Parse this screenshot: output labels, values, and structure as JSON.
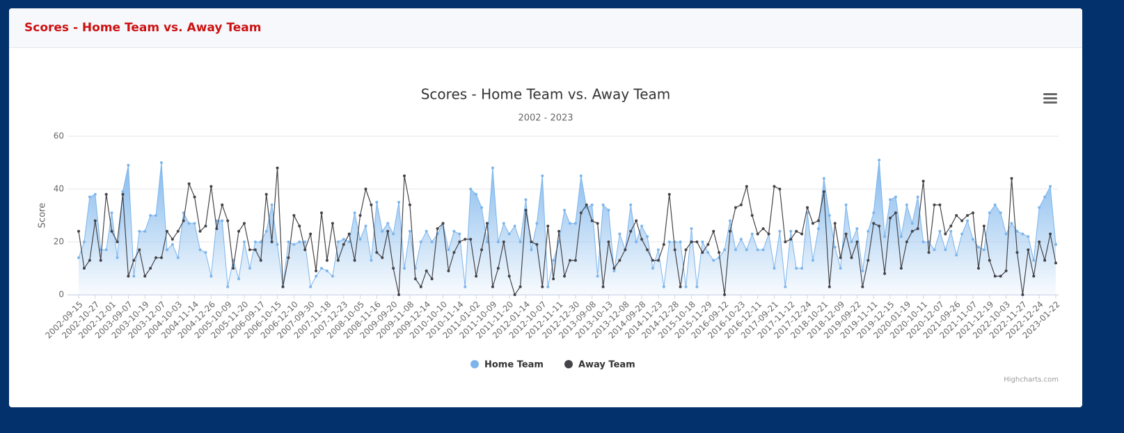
{
  "header": {
    "title": "Scores - Home Team vs. Away Team"
  },
  "chart_data": {
    "type": "line",
    "title": "Scores - Home Team vs. Away Team",
    "subtitle": "2002 - 2023",
    "y_label": "Score",
    "credits": "Highcharts.com",
    "ylim": [
      0,
      60
    ],
    "yticks": [
      0,
      20,
      40,
      60
    ],
    "grid": true,
    "legend": "bottom",
    "categories": [
      "2002-09-15",
      null,
      null,
      "2002-10-27",
      null,
      null,
      "2002-12-01",
      null,
      null,
      "2003-09-07",
      null,
      null,
      "2003-10-19",
      null,
      null,
      "2003-12-07",
      null,
      null,
      "2004-10-03",
      null,
      null,
      "2004-11-14",
      null,
      null,
      "2004-12-26",
      null,
      null,
      "2005-10-09",
      null,
      null,
      "2005-11-20",
      null,
      null,
      "2006-09-17",
      null,
      null,
      "2006-10-15",
      null,
      null,
      "2006-12-10",
      null,
      null,
      "2007-09-30",
      null,
      null,
      "2007-11-18",
      null,
      null,
      "2007-12-23",
      null,
      null,
      "2008-10-05",
      null,
      null,
      "2008-11-16",
      null,
      null,
      "2009-09-20",
      null,
      null,
      "2009-11-08",
      null,
      null,
      "2009-12-14",
      null,
      null,
      "2010-10-10",
      null,
      null,
      "2010-11-14",
      null,
      null,
      "2011-01-02",
      null,
      null,
      "2011-10-09",
      null,
      null,
      "2011-11-20",
      null,
      null,
      "2012-01-14",
      null,
      null,
      "2012-10-07",
      null,
      null,
      "2012-11-11",
      null,
      null,
      "2012-12-30",
      null,
      null,
      "2013-09-08",
      null,
      null,
      "2013-10-13",
      null,
      null,
      "2013-12-08",
      null,
      null,
      "2014-09-28",
      null,
      null,
      "2014-11-23",
      null,
      null,
      "2014-12-28",
      null,
      null,
      "2015-10-18",
      null,
      null,
      "2015-11-29",
      null,
      null,
      "2016-09-12",
      null,
      null,
      "2016-10-23",
      null,
      null,
      "2016-12-11",
      null,
      null,
      "2017-09-21",
      null,
      null,
      "2017-11-12",
      null,
      null,
      "2017-12-24",
      null,
      null,
      "2018-10-21",
      null,
      null,
      "2018-12-09",
      null,
      null,
      "2019-09-22",
      null,
      null,
      "2019-11-11",
      null,
      null,
      "2019-12-15",
      null,
      null,
      "2020-01-19",
      null,
      null,
      "2020-10-11",
      null,
      null,
      "2020-12-07",
      null,
      null,
      "2021-09-26",
      null,
      null,
      "2021-11-07",
      null,
      null,
      "2021-12-19",
      null,
      null,
      "2022-10-03",
      null,
      null,
      "2022-11-27",
      null,
      null,
      "2022-12-24",
      null,
      null,
      "2023-01-22"
    ],
    "series": [
      {
        "name": "Home Team",
        "color": "#7cb5ec",
        "area": true,
        "values": [
          14,
          20,
          37,
          38,
          17,
          17,
          31,
          14,
          39,
          49,
          7,
          24,
          24,
          30,
          30,
          50,
          17,
          19,
          14,
          31,
          27,
          27,
          17,
          16,
          7,
          28,
          28,
          3,
          13,
          6,
          20,
          10,
          20,
          20,
          24,
          34,
          19,
          3,
          20,
          19,
          20,
          20,
          3,
          7,
          10,
          9,
          7,
          20,
          21,
          20,
          31,
          21,
          26,
          13,
          35,
          24,
          27,
          23,
          35,
          10,
          24,
          10,
          20,
          24,
          20,
          23,
          27,
          17,
          24,
          23,
          3,
          40,
          38,
          33,
          20,
          48,
          20,
          27,
          23,
          26,
          20,
          36,
          17,
          27,
          45,
          3,
          13,
          20,
          32,
          27,
          27,
          45,
          33,
          34,
          7,
          34,
          32,
          9,
          23,
          17,
          34,
          20,
          26,
          22,
          10,
          17,
          3,
          20,
          20,
          20,
          3,
          25,
          3,
          20,
          16,
          13,
          14,
          17,
          28,
          17,
          21,
          17,
          23,
          17,
          17,
          23,
          10,
          24,
          3,
          24,
          10,
          10,
          31,
          13,
          25,
          44,
          30,
          18,
          10,
          34,
          20,
          25,
          9,
          24,
          31,
          51,
          22,
          36,
          37,
          22,
          34,
          27,
          37,
          20,
          20,
          17,
          24,
          17,
          24,
          15,
          23,
          28,
          21,
          18,
          17,
          31,
          34,
          31,
          23,
          27,
          24,
          23,
          22,
          13,
          33,
          37,
          41,
          19
        ]
      },
      {
        "name": "Away Team",
        "color": "#434348",
        "area": false,
        "values": [
          24,
          10,
          13,
          28,
          13,
          38,
          24,
          20,
          38,
          7,
          13,
          17,
          7,
          10,
          14,
          14,
          24,
          21,
          24,
          28,
          42,
          37,
          24,
          26,
          41,
          25,
          34,
          28,
          10,
          24,
          27,
          17,
          17,
          13,
          38,
          20,
          48,
          3,
          14,
          30,
          26,
          17,
          23,
          9,
          31,
          13,
          27,
          13,
          19,
          23,
          13,
          30,
          40,
          34,
          16,
          14,
          24,
          10,
          0,
          45,
          34,
          6,
          3,
          9,
          6,
          25,
          27,
          9,
          16,
          20,
          21,
          21,
          7,
          17,
          27,
          3,
          10,
          20,
          7,
          0,
          3,
          32,
          20,
          19,
          3,
          26,
          6,
          24,
          7,
          13,
          13,
          31,
          34,
          28,
          27,
          3,
          20,
          10,
          13,
          17,
          24,
          28,
          21,
          17,
          13,
          13,
          19,
          38,
          17,
          3,
          17,
          20,
          20,
          16,
          19,
          24,
          16,
          0,
          24,
          33,
          34,
          41,
          30,
          23,
          25,
          23,
          41,
          40,
          20,
          21,
          24,
          23,
          33,
          27,
          28,
          39,
          3,
          27,
          14,
          23,
          14,
          20,
          3,
          13,
          27,
          26,
          8,
          29,
          31,
          10,
          20,
          24,
          25,
          43,
          16,
          34,
          34,
          23,
          26,
          30,
          28,
          30,
          31,
          10,
          26,
          13,
          7,
          7,
          9,
          44,
          16,
          0,
          17,
          7,
          20,
          13,
          23,
          12
        ]
      }
    ]
  }
}
